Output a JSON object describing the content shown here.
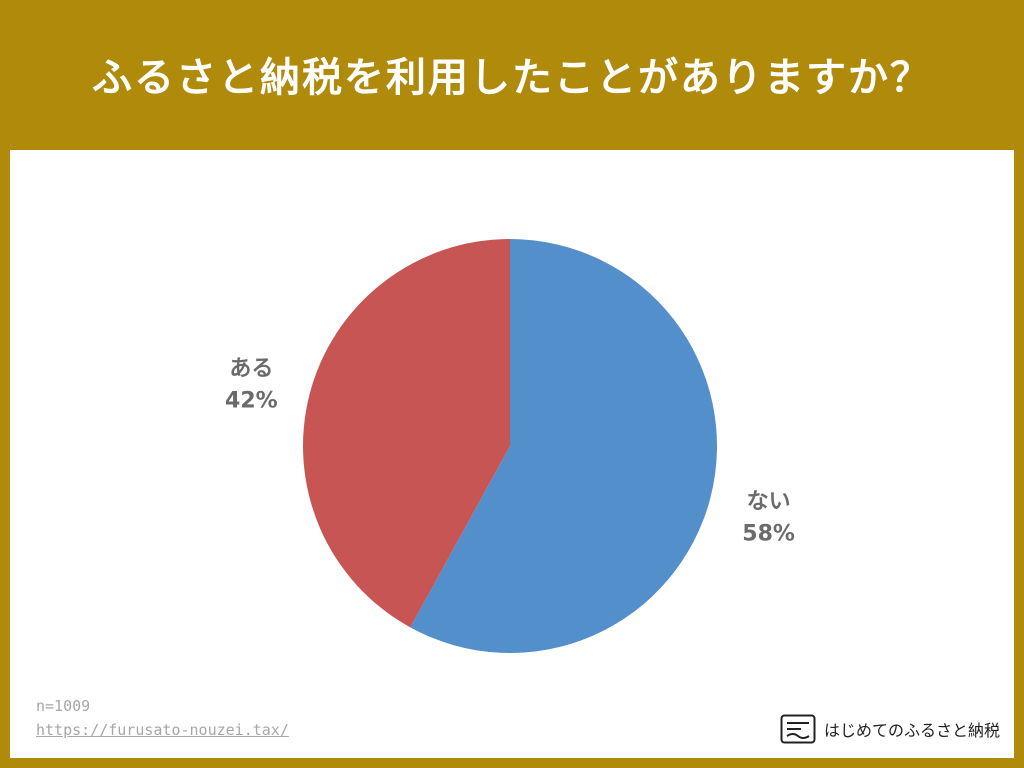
{
  "title": "ふるさと納税を利用したことがありますか？",
  "footer": {
    "sample": "n=1009",
    "url": "https://furusato-nouzei.tax/"
  },
  "brand": {
    "name": "はじめてのふるさと納税",
    "icon": "document-icon"
  },
  "colors": {
    "background": "#b08a0a",
    "panel": "#ffffff",
    "nai": "#538fcb",
    "aru": "#c65554",
    "label": "#6b6b6b"
  },
  "chart_data": {
    "type": "pie",
    "title": "ふるさと納税を利用したことがありますか？",
    "slices": [
      {
        "label": "ない",
        "value": 58,
        "display": "58%",
        "color": "#538fcb"
      },
      {
        "label": "ある",
        "value": 42,
        "display": "42%",
        "color": "#c65554"
      }
    ],
    "start_angle": "12 o'clock",
    "direction": "clockwise",
    "legend": "none"
  }
}
